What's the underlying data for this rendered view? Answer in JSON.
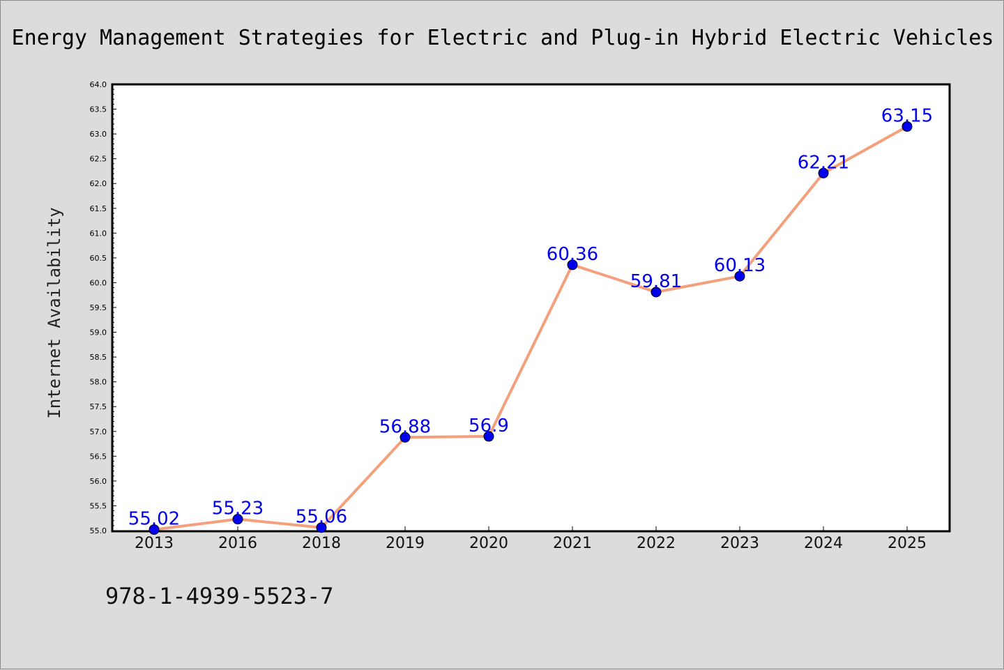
{
  "footer": {
    "isbn": "978-1-4939-5523-7"
  },
  "colors": {
    "figure_background": "#dcdcdc",
    "plot_background": "#ffffff",
    "line": "#f4a07c",
    "marker": "#0000ee",
    "data_label": "#0000ee"
  },
  "chart_data": {
    "type": "line",
    "title": "Energy Management Strategies for Electric and Plug-in Hybrid Electric Vehicles",
    "xlabel": "",
    "ylabel": "Internet Availability",
    "categories": [
      "2013",
      "2016",
      "2018",
      "2019",
      "2020",
      "2021",
      "2022",
      "2023",
      "2024",
      "2025"
    ],
    "series": [
      {
        "values": [
          55.02,
          55.23,
          55.06,
          56.88,
          56.9,
          60.36,
          59.81,
          60.13,
          62.21,
          63.15
        ],
        "value_labels": [
          "55.02",
          "55.23",
          "55.06",
          "56.88",
          "56.9",
          "60.36",
          "59.81",
          "60.13",
          "62.21",
          "63.15"
        ]
      }
    ],
    "ylim": [
      55.0,
      64.0
    ],
    "yticks": [
      "55.0",
      "55.5",
      "56.0",
      "56.5",
      "57.0",
      "57.5",
      "58.0",
      "58.5",
      "59.0",
      "59.5",
      "60.0",
      "60.5",
      "61.0",
      "61.5",
      "62.0",
      "62.5",
      "63.0",
      "63.5",
      "64.0"
    ],
    "grid": false,
    "legend": "none"
  }
}
